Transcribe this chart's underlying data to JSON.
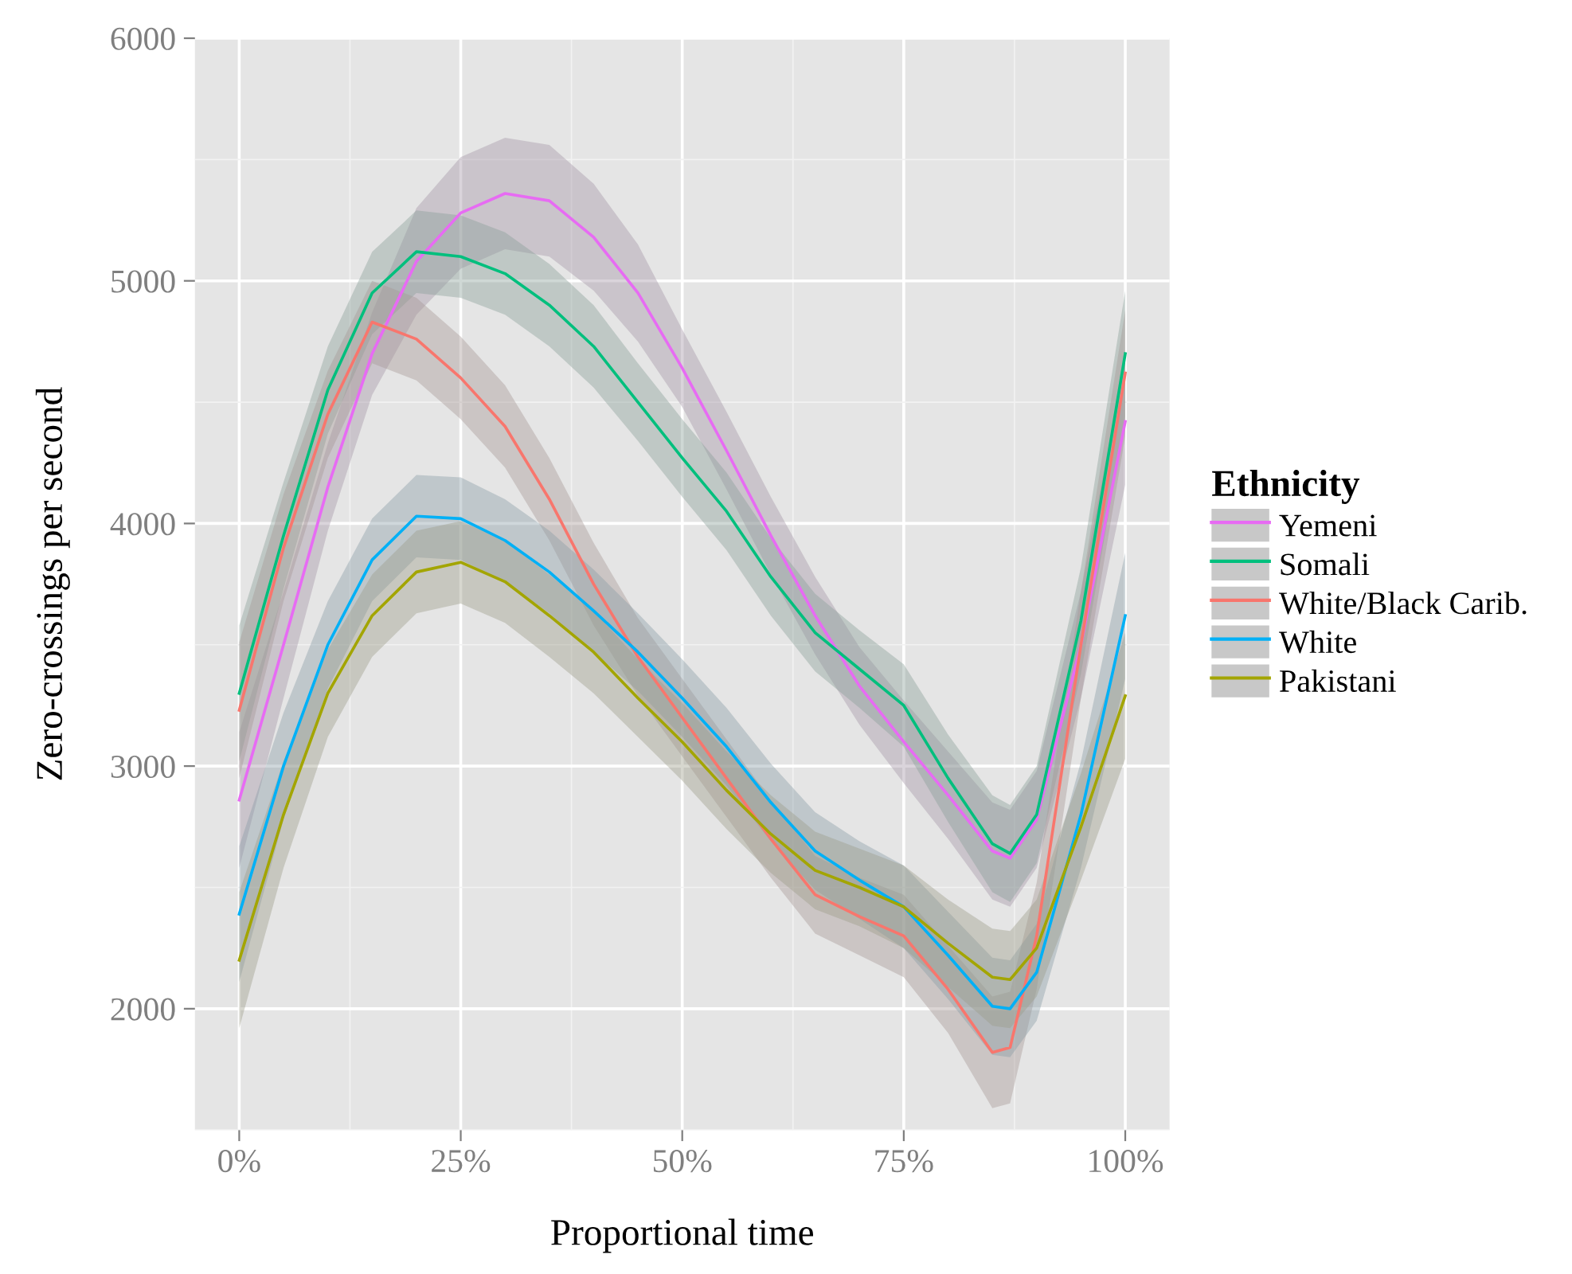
{
  "chart_data": {
    "type": "line",
    "xlabel": "Proportional time",
    "ylabel": "Zero-crossings per second",
    "legend_title": "Ethnicity",
    "x": [
      0,
      5,
      10,
      15,
      20,
      25,
      30,
      35,
      40,
      45,
      50,
      55,
      60,
      65,
      70,
      75,
      80,
      85,
      87,
      90,
      95,
      100
    ],
    "xlim": [
      -5,
      105
    ],
    "xticks": [
      {
        "value": 0,
        "label": "0%"
      },
      {
        "value": 25,
        "label": "25%"
      },
      {
        "value": 50,
        "label": "50%"
      },
      {
        "value": 75,
        "label": "75%"
      },
      {
        "value": 100,
        "label": "100%"
      }
    ],
    "ylim": [
      1515,
      6000
    ],
    "yticks": [
      2000,
      3000,
      4000,
      5000,
      6000
    ],
    "grid": true,
    "legend": "right",
    "line_style": "solid",
    "marker": "none",
    "series": [
      {
        "name": "Yemeni",
        "color": "#e76bf3",
        "values": [
          2860,
          3500,
          4150,
          4700,
          5080,
          5280,
          5360,
          5330,
          5180,
          4950,
          4640,
          4300,
          3950,
          3620,
          3330,
          3100,
          2880,
          2650,
          2620,
          2780,
          3500,
          4420
        ],
        "lower": [
          2580,
          3280,
          3970,
          4530,
          4860,
          5050,
          5130,
          5100,
          4960,
          4750,
          4480,
          4140,
          3790,
          3460,
          3170,
          2930,
          2700,
          2450,
          2420,
          2580,
          3280,
          4160
        ],
        "upper": [
          3140,
          3720,
          4330,
          4870,
          5300,
          5510,
          5590,
          5560,
          5400,
          5150,
          4800,
          4460,
          4110,
          3780,
          3490,
          3270,
          3060,
          2850,
          2820,
          2980,
          3720,
          4680
        ]
      },
      {
        "name": "Somali",
        "color": "#00bf7d",
        "values": [
          3300,
          3950,
          4550,
          4950,
          5120,
          5100,
          5030,
          4900,
          4730,
          4500,
          4270,
          4050,
          3780,
          3550,
          3400,
          3250,
          2950,
          2680,
          2640,
          2800,
          3600,
          4700
        ],
        "lower": [
          3020,
          3730,
          4370,
          4780,
          4950,
          4930,
          4860,
          4730,
          4560,
          4340,
          4110,
          3890,
          3620,
          3390,
          3240,
          3080,
          2770,
          2480,
          2440,
          2600,
          3380,
          4440
        ],
        "upper": [
          3580,
          4170,
          4730,
          5120,
          5290,
          5270,
          5200,
          5070,
          4900,
          4660,
          4430,
          4210,
          3940,
          3710,
          3560,
          3420,
          3130,
          2880,
          2840,
          3000,
          3820,
          4960
        ]
      },
      {
        "name": "White/Black Carib.",
        "color": "#f8766d",
        "values": [
          3230,
          3900,
          4450,
          4830,
          4760,
          4600,
          4400,
          4100,
          3750,
          3450,
          3200,
          2950,
          2700,
          2470,
          2380,
          2300,
          2080,
          1820,
          1840,
          2300,
          3500,
          4620
        ],
        "lower": [
          2950,
          3680,
          4270,
          4660,
          4590,
          4430,
          4230,
          3930,
          3580,
          3290,
          3040,
          2790,
          2540,
          2310,
          2220,
          2130,
          1900,
          1590,
          1610,
          2080,
          3280,
          4360
        ],
        "upper": [
          3510,
          4120,
          4630,
          5000,
          4930,
          4770,
          4570,
          4270,
          3920,
          3610,
          3360,
          3110,
          2860,
          2630,
          2540,
          2470,
          2260,
          2050,
          2070,
          2520,
          3720,
          4880
        ]
      },
      {
        "name": "White",
        "color": "#00b0f6",
        "values": [
          2390,
          3000,
          3500,
          3850,
          4030,
          4020,
          3930,
          3800,
          3640,
          3470,
          3280,
          3080,
          2850,
          2650,
          2530,
          2420,
          2220,
          2010,
          2000,
          2150,
          2800,
          3620
        ],
        "lower": [
          2110,
          2780,
          3320,
          3680,
          3860,
          3850,
          3760,
          3630,
          3470,
          3310,
          3120,
          2920,
          2690,
          2490,
          2370,
          2250,
          2040,
          1810,
          1800,
          1950,
          2580,
          3360
        ],
        "upper": [
          2670,
          3220,
          3680,
          4020,
          4200,
          4190,
          4100,
          3970,
          3810,
          3630,
          3440,
          3240,
          3010,
          2810,
          2690,
          2590,
          2400,
          2210,
          2200,
          2350,
          3020,
          3880
        ]
      },
      {
        "name": "Pakistani",
        "color": "#a3a500",
        "values": [
          2200,
          2800,
          3300,
          3620,
          3800,
          3840,
          3760,
          3620,
          3470,
          3280,
          3100,
          2900,
          2720,
          2570,
          2500,
          2420,
          2270,
          2130,
          2120,
          2250,
          2750,
          3290
        ],
        "lower": [
          1920,
          2580,
          3120,
          3450,
          3630,
          3670,
          3590,
          3450,
          3300,
          3120,
          2940,
          2740,
          2560,
          2410,
          2340,
          2250,
          2090,
          1930,
          1920,
          2050,
          2530,
          3030
        ],
        "upper": [
          2480,
          3020,
          3480,
          3790,
          3970,
          4010,
          3930,
          3790,
          3640,
          3440,
          3260,
          3060,
          2880,
          2730,
          2660,
          2590,
          2450,
          2330,
          2320,
          2450,
          2970,
          3550
        ]
      }
    ]
  }
}
